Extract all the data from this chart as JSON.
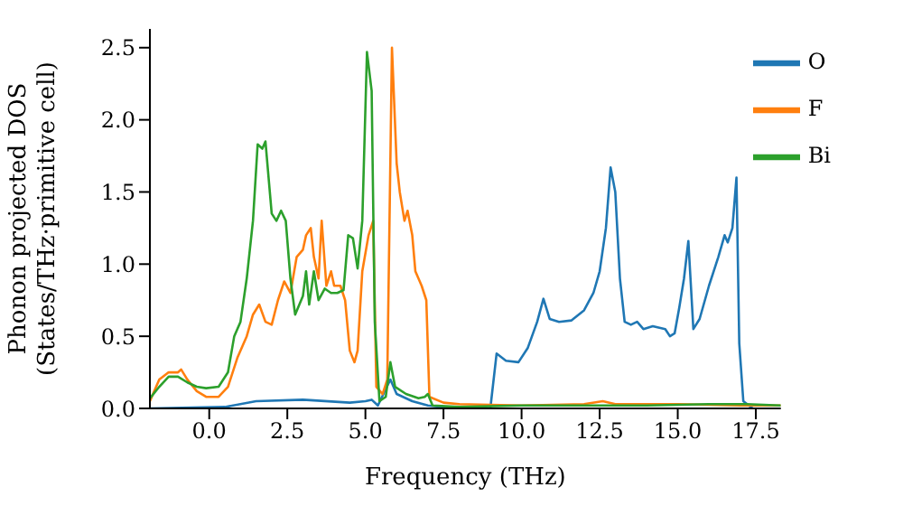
{
  "chart_data": {
    "type": "line",
    "xlabel": "Frequency (THz)",
    "ylabel": "Phonon projected DOS\n(States/THz·primitive cell)",
    "xlim": [
      -1.9,
      18.3
    ],
    "ylim": [
      0,
      2.63
    ],
    "xticks": [
      {
        "value": 0,
        "label": "0.0"
      },
      {
        "value": 2.5,
        "label": "2.5"
      },
      {
        "value": 5,
        "label": "5.0"
      },
      {
        "value": 7.5,
        "label": "7.5"
      },
      {
        "value": 10,
        "label": "10.0"
      },
      {
        "value": 12.5,
        "label": "12.5"
      },
      {
        "value": 15,
        "label": "15.0"
      },
      {
        "value": 17.5,
        "label": "17.5"
      }
    ],
    "yticks": [
      {
        "value": 0,
        "label": "0.0"
      },
      {
        "value": 0.5,
        "label": "0.5"
      },
      {
        "value": 1,
        "label": "1.0"
      },
      {
        "value": 1.5,
        "label": "1.5"
      },
      {
        "value": 2,
        "label": "2.0"
      },
      {
        "value": 2.5,
        "label": "2.5"
      }
    ],
    "grid": false,
    "legend": "top right",
    "marker": "none",
    "line_style": "solid",
    "series": [
      {
        "name": "O",
        "color": "#1f77b4",
        "x": [
          -1.9,
          0.5,
          1.5,
          3,
          4.5,
          5,
          5.2,
          5.4,
          5.8,
          6,
          6.5,
          7,
          8,
          9,
          9.2,
          9.5,
          9.9,
          10.2,
          10.5,
          10.7,
          10.9,
          11.2,
          11.6,
          12,
          12.3,
          12.5,
          12.7,
          12.85,
          13,
          13.15,
          13.3,
          13.5,
          13.7,
          13.9,
          14.2,
          14.6,
          14.75,
          14.9,
          15.05,
          15.2,
          15.34,
          15.5,
          15.7,
          16,
          16.3,
          16.5,
          16.6,
          16.75,
          16.88,
          16.97,
          17.1,
          17.4
        ],
        "values": [
          0,
          0.01,
          0.05,
          0.06,
          0.04,
          0.05,
          0.06,
          0.02,
          0.2,
          0.1,
          0.05,
          0.02,
          0,
          0,
          0.38,
          0.33,
          0.32,
          0.42,
          0.6,
          0.76,
          0.62,
          0.6,
          0.61,
          0.68,
          0.8,
          0.95,
          1.25,
          1.67,
          1.5,
          0.9,
          0.6,
          0.58,
          0.6,
          0.55,
          0.57,
          0.55,
          0.5,
          0.52,
          0.7,
          0.9,
          1.16,
          0.55,
          0.62,
          0.85,
          1.05,
          1.2,
          1.15,
          1.25,
          1.6,
          0.45,
          0.05,
          0
        ]
      },
      {
        "name": "F",
        "color": "#ff7f0e",
        "x": [
          -1.9,
          -1.6,
          -1.3,
          -1,
          -0.9,
          -0.7,
          -0.4,
          -0.1,
          0.3,
          0.6,
          0.9,
          1.2,
          1.4,
          1.6,
          1.8,
          2,
          2.2,
          2.4,
          2.6,
          2.8,
          3,
          3.1,
          3.25,
          3.35,
          3.5,
          3.6,
          3.75,
          3.9,
          4,
          4.2,
          4.35,
          4.5,
          4.65,
          4.75,
          4.9,
          5.1,
          5.25,
          5.35,
          5.55,
          5.7,
          5.85,
          6,
          6.1,
          6.25,
          6.35,
          6.5,
          6.6,
          6.8,
          6.95,
          7.05,
          7.5,
          8,
          10,
          12,
          12.6,
          13,
          15,
          17,
          18.3
        ],
        "values": [
          0.05,
          0.2,
          0.25,
          0.25,
          0.27,
          0.2,
          0.12,
          0.08,
          0.08,
          0.15,
          0.35,
          0.5,
          0.65,
          0.72,
          0.6,
          0.58,
          0.75,
          0.88,
          0.8,
          1.05,
          1.1,
          1.2,
          1.25,
          1.05,
          0.9,
          1.3,
          0.85,
          0.95,
          0.85,
          0.85,
          0.75,
          0.4,
          0.32,
          0.4,
          0.95,
          1.2,
          1.3,
          0.15,
          0.1,
          0.2,
          2.5,
          1.7,
          1.5,
          1.3,
          1.37,
          1.2,
          0.95,
          0.85,
          0.75,
          0.08,
          0.04,
          0.03,
          0.02,
          0.03,
          0.05,
          0.03,
          0.03,
          0.02,
          0.02
        ]
      },
      {
        "name": "Bi",
        "color": "#2ca02c",
        "x": [
          -1.9,
          -1.6,
          -1.3,
          -1,
          -0.7,
          -0.4,
          -0.1,
          0.3,
          0.6,
          0.8,
          1,
          1.2,
          1.4,
          1.55,
          1.7,
          1.8,
          2,
          2.15,
          2.3,
          2.45,
          2.6,
          2.75,
          3,
          3.1,
          3.2,
          3.35,
          3.5,
          3.7,
          3.9,
          4.1,
          4.3,
          4.45,
          4.6,
          4.75,
          4.9,
          5.05,
          5.2,
          5.3,
          5.45,
          5.65,
          5.8,
          5.95,
          6.3,
          6.7,
          6.9,
          7,
          7.15,
          8,
          10,
          12,
          14,
          16,
          17.2,
          18.3
        ],
        "values": [
          0.07,
          0.15,
          0.22,
          0.22,
          0.18,
          0.15,
          0.14,
          0.15,
          0.25,
          0.5,
          0.6,
          0.9,
          1.3,
          1.83,
          1.8,
          1.85,
          1.35,
          1.3,
          1.37,
          1.3,
          0.9,
          0.65,
          0.78,
          0.95,
          0.72,
          0.95,
          0.75,
          0.83,
          0.8,
          0.8,
          0.82,
          1.2,
          1.18,
          0.97,
          1.3,
          2.47,
          2.2,
          0.6,
          0.05,
          0.08,
          0.32,
          0.15,
          0.1,
          0.07,
          0.08,
          0.1,
          0.02,
          0.01,
          0.02,
          0.02,
          0.02,
          0.03,
          0.03,
          0.02
        ]
      }
    ]
  }
}
